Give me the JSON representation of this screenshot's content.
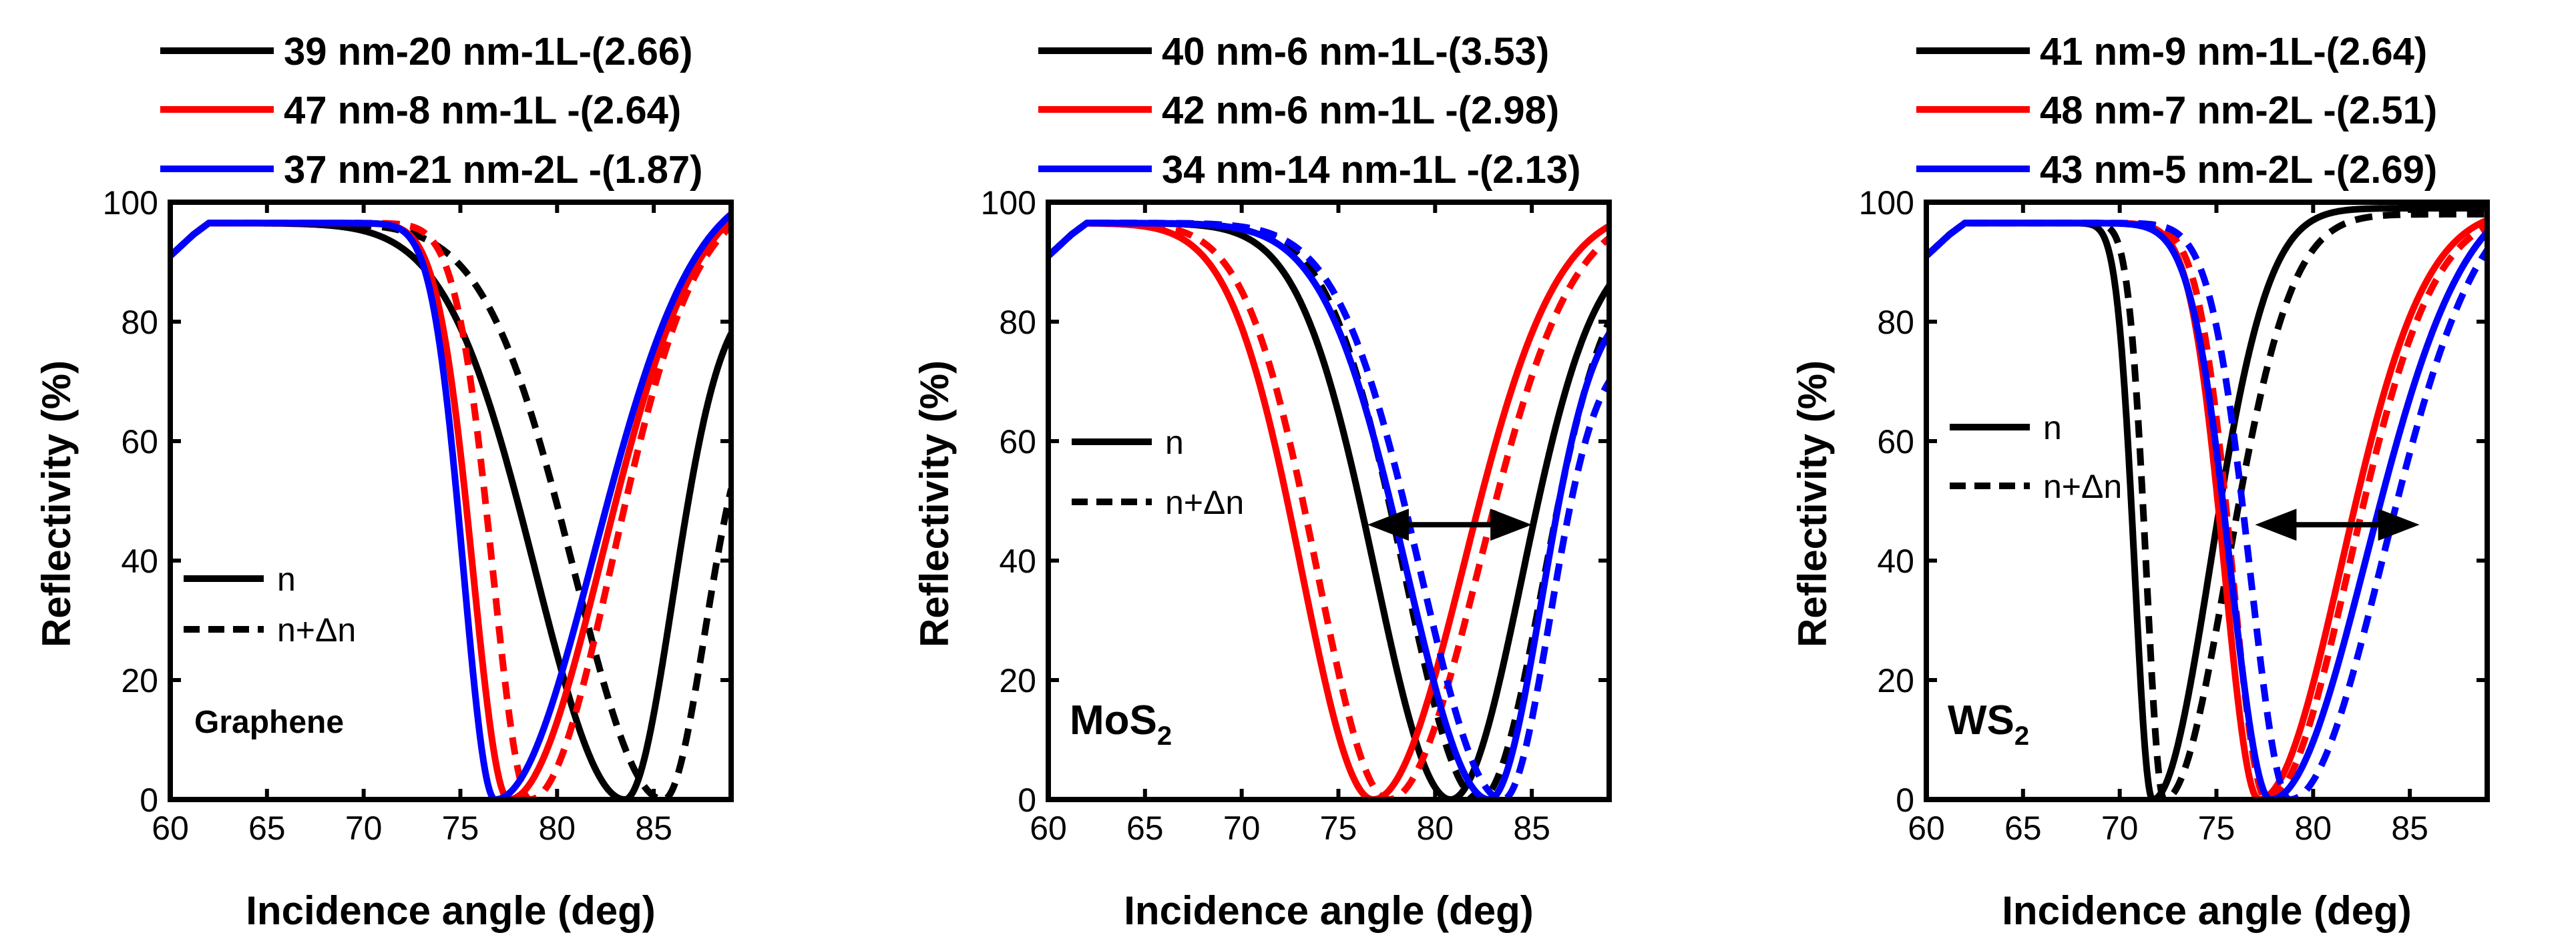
{
  "chart_data": [
    {
      "type": "line",
      "material": "Graphene",
      "material_main": "Graphene",
      "material_sub": "",
      "xlabel": "Incidence angle (deg)",
      "ylabel": "Reflectivity (%)",
      "xlim": [
        60,
        89
      ],
      "ylim": [
        0,
        100
      ],
      "xticks": [
        60,
        65,
        70,
        75,
        80,
        85
      ],
      "yticks": [
        0,
        20,
        40,
        60,
        80,
        100
      ],
      "linestyle_legend": {
        "solid": "n",
        "dashed": "n+Δn"
      },
      "shift_arrow": null,
      "series": [
        {
          "name": "39 nm-20 nm-1L-(2.66)",
          "color": "#000000",
          "base": {
            "dip": 83.5,
            "wl": 6.5,
            "wr": 3.5,
            "r0": 96.5,
            "endR": 78
          },
          "perturbed": {
            "dip": 85.5,
            "wl": 6.5,
            "wr": 3.0,
            "r0": 96.5,
            "endR": 52
          }
        },
        {
          "name": "47 nm-8 nm-1L -(2.64)",
          "color": "#ff0000",
          "base": {
            "dip": 77.5,
            "wl": 2.6,
            "wr": 6.8,
            "r0": 96.5,
            "endR": 97
          },
          "perturbed": {
            "dip": 78.6,
            "wl": 2.7,
            "wr": 6.0,
            "r0": 96.5,
            "endR": 96
          }
        },
        {
          "name": "37 nm-21 nm-2L -(1.87)",
          "color": "#0000ff",
          "base": {
            "dip": 76.8,
            "wl": 2.3,
            "wr": 7.2,
            "r0": 96.5,
            "endR": 98
          },
          "perturbed": null
        }
      ]
    },
    {
      "type": "line",
      "material": "MoS2",
      "material_main": "MoS",
      "material_sub": "2",
      "xlabel": "Incidence angle (deg)",
      "ylabel": "Reflectivity (%)",
      "xlim": [
        60,
        89
      ],
      "ylim": [
        0,
        100
      ],
      "xticks": [
        60,
        65,
        70,
        75,
        80,
        85
      ],
      "yticks": [
        0,
        20,
        40,
        60,
        80,
        100
      ],
      "linestyle_legend": {
        "solid": "n",
        "dashed": "n+Δn"
      },
      "shift_arrow": {
        "x1": 76.5,
        "x2": 85,
        "y": 46
      },
      "series": [
        {
          "name": "40 nm-6 nm-1L-(3.53)",
          "color": "#000000",
          "base": {
            "dip": 80.8,
            "wl": 5.5,
            "wr": 5.2,
            "r0": 96.5,
            "endR": 86
          },
          "perturbed": {
            "dip": 82.3,
            "wl": 5.5,
            "wr": 4.6,
            "r0": 96.5,
            "endR": 80
          }
        },
        {
          "name": "42 nm-6 nm-1L -(2.98)",
          "color": "#ff0000",
          "base": {
            "dip": 76.8,
            "wl": 5.2,
            "wr": 6.6,
            "r0": 96.5,
            "endR": 96
          },
          "perturbed": {
            "dip": 77.6,
            "wl": 5.2,
            "wr": 6.6,
            "r0": 96.5,
            "endR": 94
          }
        },
        {
          "name": "34 nm-14 nm-1L -(2.13)",
          "color": "#0000ff",
          "base": {
            "dip": 82.8,
            "wl": 6.0,
            "wr": 3.8,
            "r0": 96.5,
            "endR": 78
          },
          "perturbed": {
            "dip": 83.5,
            "wl": 6.0,
            "wr": 3.4,
            "r0": 96.5,
            "endR": 70
          }
        }
      ]
    },
    {
      "type": "line",
      "material": "WS2",
      "material_main": "WS",
      "material_sub": "2",
      "xlabel": "Incidence angle (deg)",
      "ylabel": "Reflectivity (%)",
      "xlim": [
        60,
        89
      ],
      "ylim": [
        0,
        100
      ],
      "xticks": [
        60,
        65,
        70,
        75,
        80,
        85
      ],
      "yticks": [
        0,
        20,
        40,
        60,
        80,
        100
      ],
      "linestyle_legend": {
        "solid": "n",
        "dashed": "n+Δn"
      },
      "shift_arrow": {
        "x1": 77,
        "x2": 85.5,
        "y": 46
      },
      "series": [
        {
          "name": "41 nm-9 nm-1L-(2.64)",
          "color": "#000000",
          "base": {
            "dip": 71.7,
            "wl": 1.3,
            "wr": 4.2,
            "r0": 96.5,
            "endR": 99
          },
          "perturbed": {
            "dip": 72.3,
            "wl": 1.3,
            "wr": 4.6,
            "r0": 96.5,
            "endR": 98
          }
        },
        {
          "name": "48 nm-7 nm-2L -(2.51)",
          "color": "#ff0000",
          "base": {
            "dip": 77.2,
            "wl": 2.5,
            "wr": 6.0,
            "r0": 96.5,
            "endR": 97
          },
          "perturbed": {
            "dip": 77.6,
            "wl": 2.5,
            "wr": 6.0,
            "r0": 96.5,
            "endR": 96
          }
        },
        {
          "name": "43 nm-5 nm-2L -(2.69)",
          "color": "#0000ff",
          "base": {
            "dip": 77.8,
            "wl": 2.9,
            "wr": 7.0,
            "r0": 96.5,
            "endR": 95
          },
          "perturbed": {
            "dip": 78.8,
            "wl": 2.9,
            "wr": 6.8,
            "r0": 96.5,
            "endR": 92
          }
        }
      ]
    }
  ]
}
